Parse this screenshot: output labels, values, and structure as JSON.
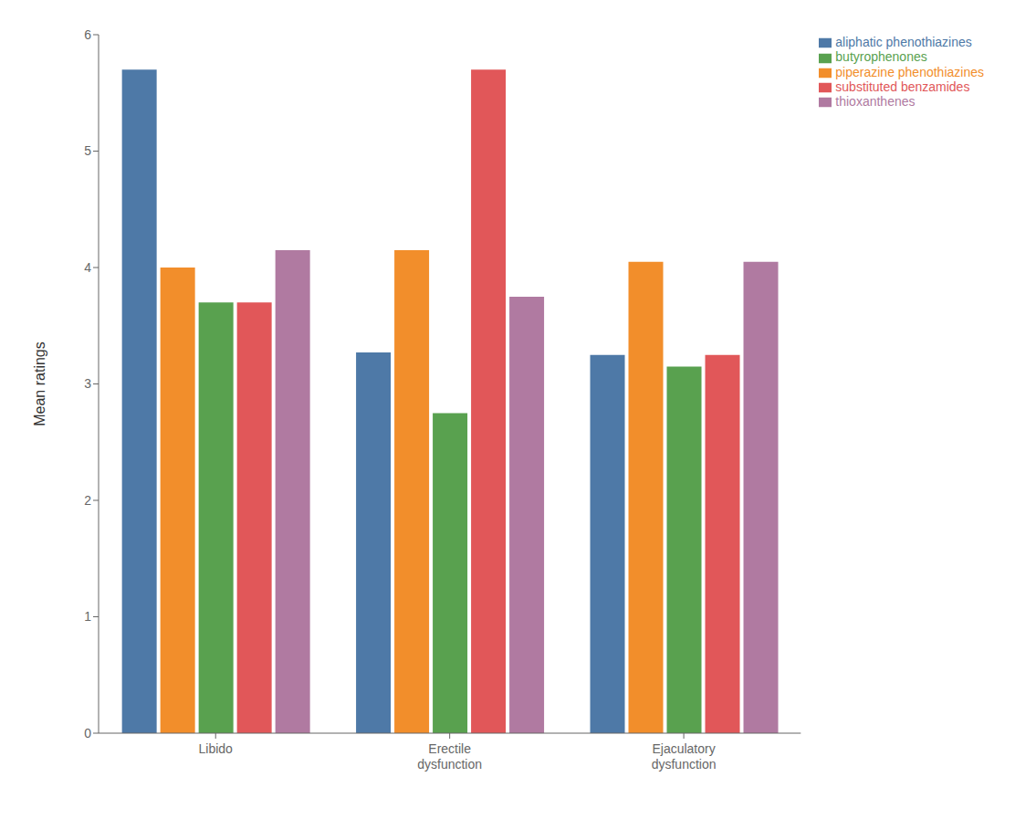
{
  "chart_data": {
    "type": "bar",
    "categories": [
      "Libido",
      "Erectile\ndysfunction",
      "Ejaculatory\ndysfunction"
    ],
    "series": [
      {
        "name": "aliphatic phenothiazines",
        "values": [
          5.7,
          3.27,
          3.25
        ],
        "color": "#4e79a7"
      },
      {
        "name": "piperazine phenothiazines",
        "values": [
          4.0,
          4.15,
          4.05
        ],
        "color": "#f28e2b"
      },
      {
        "name": "butyrophenones",
        "values": [
          3.7,
          2.75,
          3.15
        ],
        "color": "#59a14f"
      },
      {
        "name": "substituted benzamides",
        "values": [
          3.7,
          5.7,
          3.25
        ],
        "color": "#e15759"
      },
      {
        "name": "thioxanthenes",
        "values": [
          4.15,
          3.75,
          4.05
        ],
        "color": "#b07aa1"
      }
    ],
    "ylabel": "Mean ratings",
    "ylim": [
      0,
      6
    ],
    "yticks": [
      0,
      1,
      2,
      3,
      4,
      5,
      6
    ],
    "grid": false,
    "legend": "upper right"
  }
}
